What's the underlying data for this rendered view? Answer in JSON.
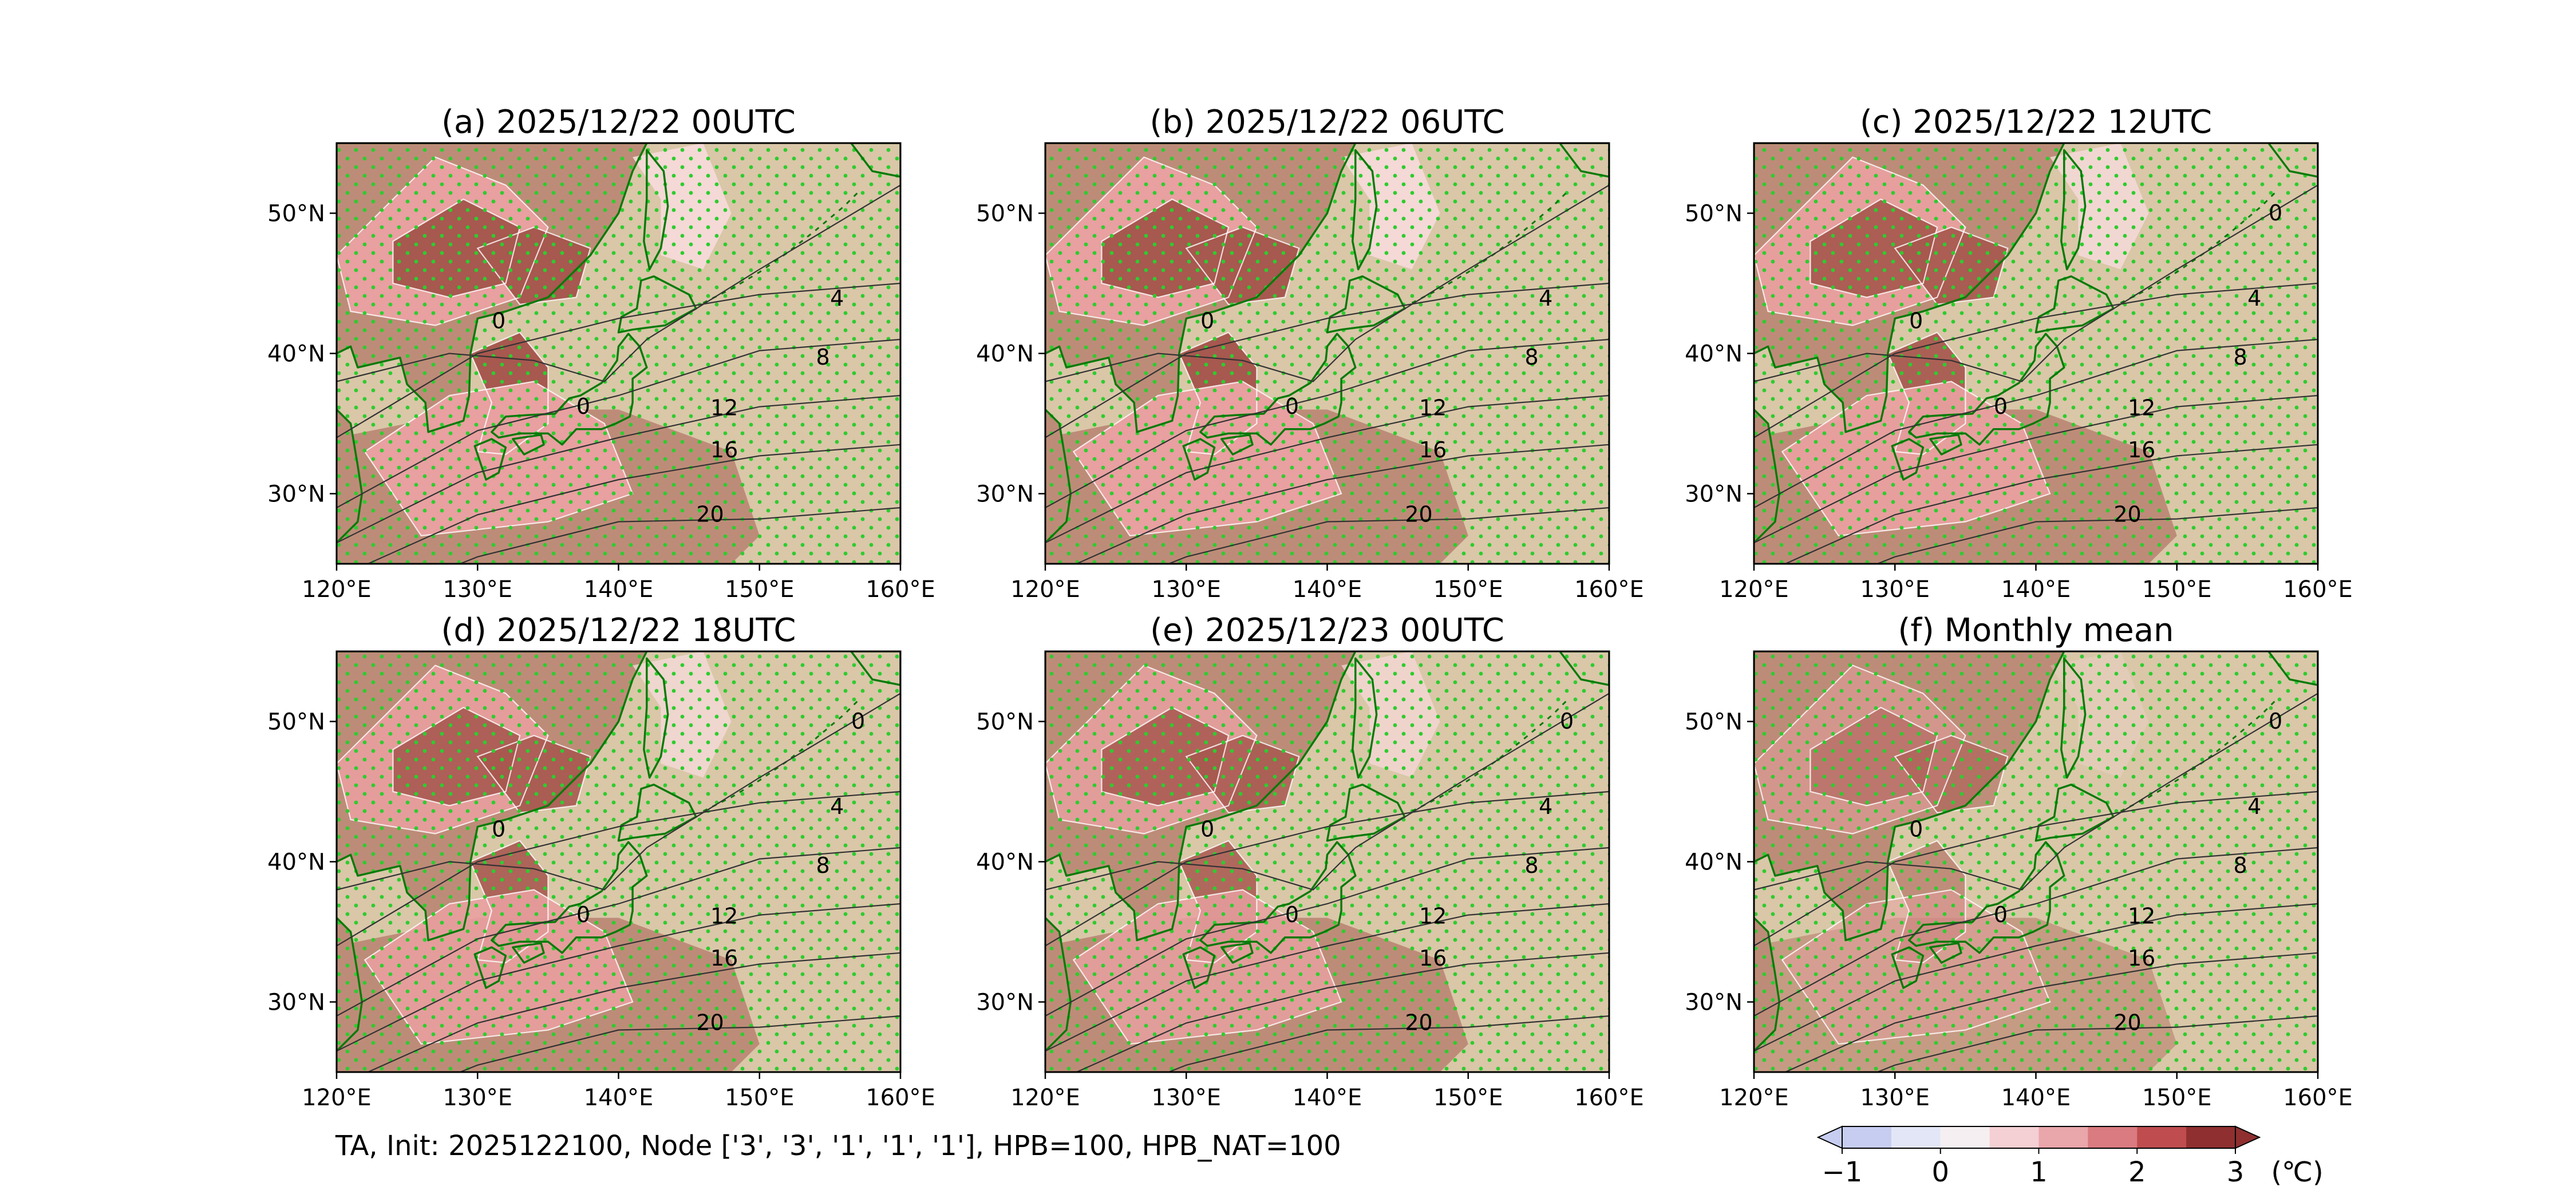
{
  "figure": {
    "caption": "TA, Init: 2025122100, Node ['3', '3', '1', '1', '1'], HPB=100, HPB_NAT=100"
  },
  "axes": {
    "x_ticks": [
      "120°E",
      "130°E",
      "140°E",
      "150°E",
      "160°E"
    ],
    "y_ticks": [
      "50°N",
      "40°N",
      "30°N"
    ],
    "lon_range": [
      120,
      160
    ],
    "lat_range": [
      25,
      55
    ]
  },
  "panels": [
    {
      "title": "(a) 2025/12/22 00UTC",
      "contour_labels": [
        "4",
        "8",
        "12",
        "16",
        "20",
        "0",
        "0"
      ],
      "intensity": 1.0
    },
    {
      "title": "(b) 2025/12/22 06UTC",
      "contour_labels": [
        "4",
        "8",
        "12",
        "16",
        "20",
        "0",
        "0"
      ],
      "intensity": 1.0
    },
    {
      "title": "(c) 2025/12/22 12UTC",
      "contour_labels": [
        "4",
        "8",
        "12",
        "16",
        "20",
        "0",
        "0",
        "0"
      ],
      "intensity": 0.9
    },
    {
      "title": "(d) 2025/12/22 18UTC",
      "contour_labels": [
        "0",
        "4",
        "8",
        "12",
        "16",
        "20",
        "0",
        "0"
      ],
      "intensity": 0.85
    },
    {
      "title": "(e) 2025/12/23 00UTC",
      "contour_labels": [
        "0",
        "4",
        "8",
        "12",
        "16",
        "20",
        "0",
        "0"
      ],
      "intensity": 0.8
    },
    {
      "title": "(f) Monthly mean",
      "contour_labels": [
        "0",
        "4",
        "8",
        "12",
        "16",
        "20",
        "0",
        "0"
      ],
      "intensity": 0.35
    }
  ],
  "colorbar": {
    "tick_labels": [
      "−1",
      "0",
      "1",
      "2",
      "3"
    ],
    "unit": "(℃)",
    "colors": [
      "#c6cdf0",
      "#e3e6f6",
      "#f6eff2",
      "#f4cfd3",
      "#e9a6ab",
      "#d97b80",
      "#bf4c4f",
      "#8f2f30"
    ],
    "extend": "both"
  },
  "colors": {
    "land_fill": "#bd8c78",
    "ocean_fill": "#d9c7a8",
    "anomaly_dark": "#a7584f",
    "anomaly_pink": "#e8a0a0",
    "anomaly_light": "#f6dada",
    "coastline": "#0a7a0a",
    "stipple": "#2ecc2e",
    "clim_contour": "#333333",
    "anom_contour": "#ffffff"
  }
}
